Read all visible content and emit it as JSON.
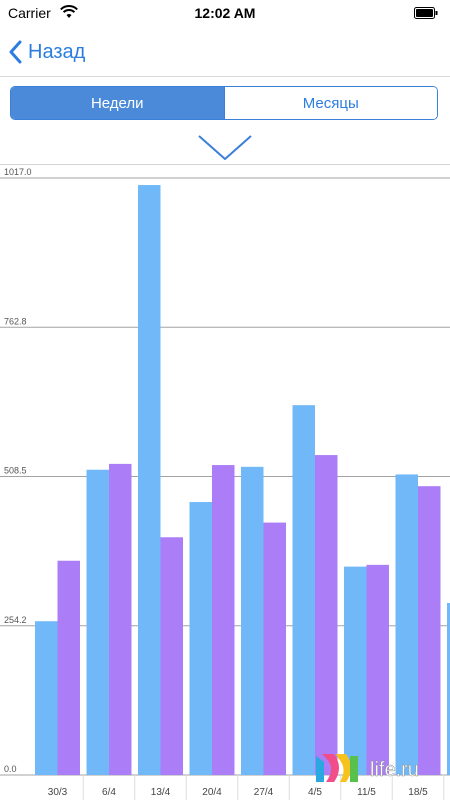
{
  "status_bar": {
    "carrier": "Carrier",
    "time": "12:02 AM"
  },
  "nav": {
    "back_label": "Назад"
  },
  "segments": {
    "weeks": "Недели",
    "months": "Месяцы",
    "selected": "weeks"
  },
  "colors": {
    "accent": "#2c7de0",
    "series_a": "#71b8f9",
    "series_b": "#ab7df7",
    "grid": "#a3a3a3"
  },
  "chart_data": {
    "type": "bar",
    "categories": [
      "30/3",
      "6/4",
      "13/4",
      "20/4",
      "27/4",
      "4/5",
      "11/5",
      "18/5"
    ],
    "series": [
      {
        "values": [
          262,
          520,
          1005,
          465,
          525,
          630,
          355,
          512
        ]
      },
      {
        "values": [
          365,
          530,
          405,
          528,
          430,
          545,
          358,
          492
        ]
      }
    ],
    "partial_next_value": 293,
    "y_ticks": [
      "1017.0",
      "762.8",
      "508.5",
      "254.2",
      "0.0"
    ],
    "ylim": [
      0,
      1017
    ],
    "grid": true
  },
  "watermark": {
    "text": "life.ru"
  }
}
